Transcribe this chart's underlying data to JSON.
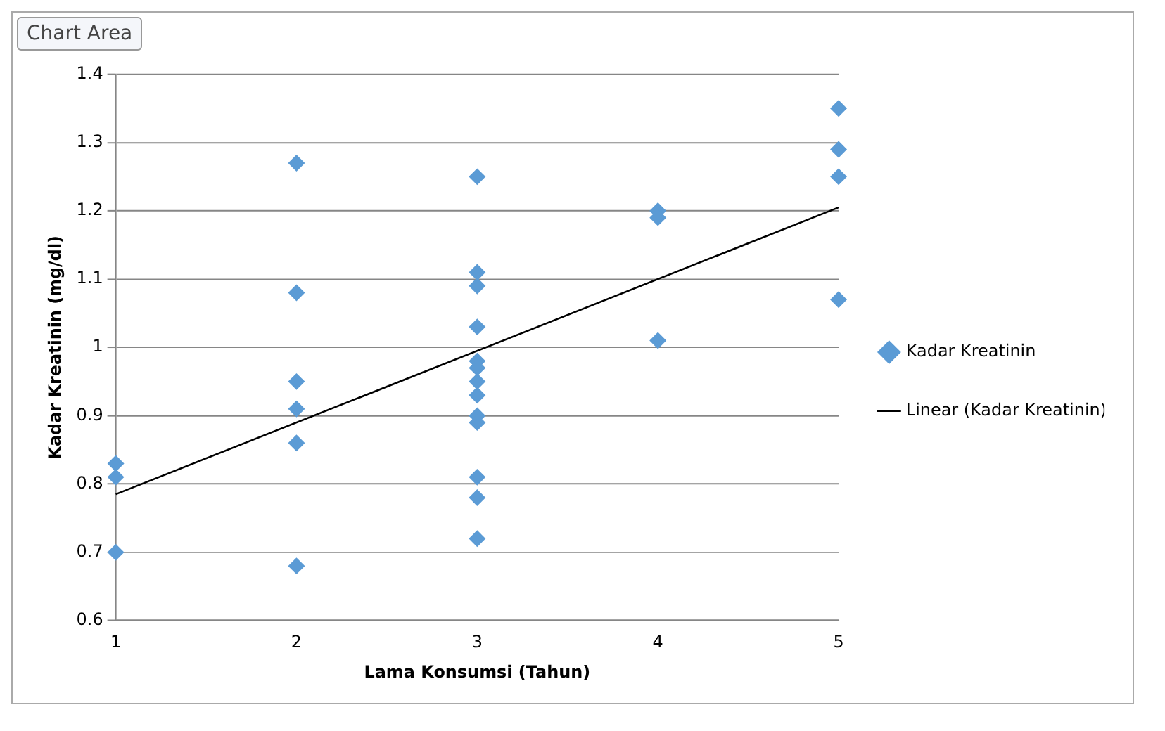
{
  "chart_data": {
    "type": "scatter",
    "xlabel": "Lama Konsumsi (Tahun)",
    "ylabel": "Kadar Kreatinin (mg/dl)",
    "xlim": [
      1,
      5
    ],
    "xticks": [
      1,
      2,
      3,
      4,
      5
    ],
    "ylim": [
      0.6,
      1.4
    ],
    "yticks": [
      0.6,
      0.7,
      0.8,
      0.9,
      1,
      1.1,
      1.2,
      1.3,
      1.4
    ],
    "grid": "y",
    "legend": "right",
    "annotations": [
      "Chart Area"
    ],
    "series": [
      {
        "name": "Kadar Kreatinin",
        "marker": "diamond",
        "color": "#5b9bd5",
        "x": [
          1,
          1,
          1,
          2,
          2,
          2,
          2,
          2,
          2,
          3,
          3,
          3,
          3,
          3,
          3,
          3,
          3,
          3,
          3,
          3,
          3,
          3,
          4,
          4,
          4,
          5,
          5,
          5,
          5
        ],
        "values": [
          0.83,
          0.81,
          0.7,
          1.27,
          1.08,
          0.95,
          0.91,
          0.86,
          0.68,
          1.25,
          1.11,
          1.09,
          1.03,
          0.98,
          0.97,
          0.95,
          0.93,
          0.9,
          0.89,
          0.81,
          0.78,
          0.72,
          1.2,
          1.19,
          1.01,
          1.35,
          1.29,
          1.25,
          1.07
        ]
      },
      {
        "name": "Linear (Kadar Kreatinin)",
        "type": "line",
        "marker": "none",
        "color": "#000000",
        "x": [
          1,
          5
        ],
        "values": [
          0.785,
          1.205
        ]
      }
    ]
  }
}
